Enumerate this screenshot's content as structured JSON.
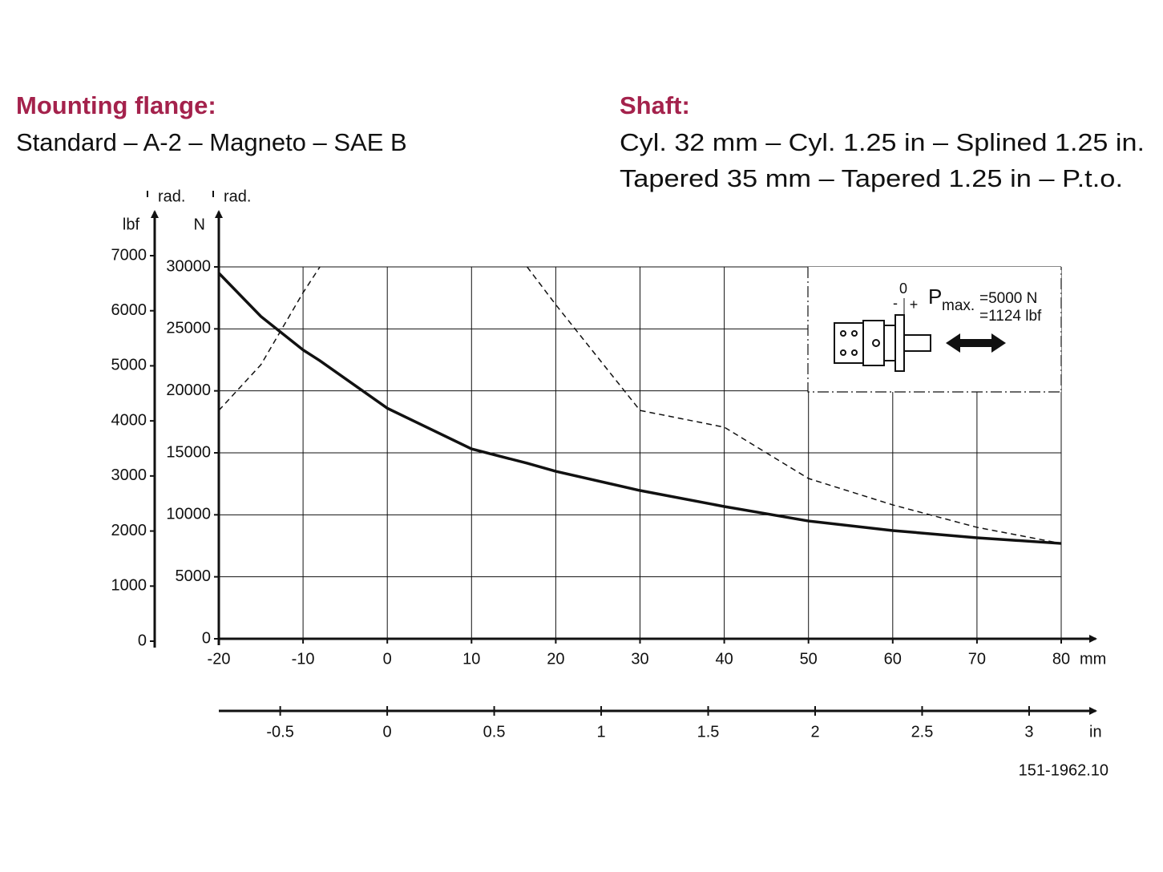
{
  "header": {
    "left_title": "Mounting flange:",
    "left_text": "Standard – A-2 – Magneto – SAE B",
    "right_title": "Shaft:",
    "right_lines": [
      "Cyl. 32 mm – Cyl. 1.25 in – Splined 1.25 in.",
      "Tapered 35 mm – Tapered 1.25 in – P.t.o."
    ]
  },
  "chart_data": {
    "type": "line",
    "x_label": "mm",
    "x2_label": "in",
    "y_label": "N",
    "y2_label": "lbf",
    "y_note": "rad.",
    "y2_note": "rad.",
    "x": [
      -20,
      -15,
      -10,
      -8,
      0,
      10,
      16.6,
      20,
      30,
      40,
      50,
      60,
      70,
      80
    ],
    "series": [
      {
        "color": "#111111",
        "line_style": "solid",
        "values": [
          29500,
          26000,
          23300,
          22430,
          18600,
          15320,
          14160,
          13510,
          11960,
          10670,
          9500,
          8730,
          8150,
          7690
        ]
      },
      {
        "color": "#111111",
        "line_style": "dashed",
        "values": [
          18420,
          22110,
          27920,
          30000,
          null,
          null,
          30000,
          26950,
          18420,
          17070,
          12930,
          10800,
          8990,
          7690
        ]
      }
    ],
    "xlim": [
      -20,
      80
    ],
    "xticks": [
      -20,
      -10,
      0,
      10,
      20,
      30,
      40,
      50,
      60,
      70,
      80
    ],
    "x2lim": [
      -0.787,
      3.15
    ],
    "x2ticks": [
      -0.5,
      0,
      0.5,
      1,
      1.5,
      2,
      2.5,
      3
    ],
    "ylim": [
      0,
      30000
    ],
    "yticks": [
      0,
      5000,
      10000,
      15000,
      20000,
      25000,
      30000
    ],
    "y2lim": [
      0,
      7000
    ],
    "y2ticks": [
      0,
      1000,
      2000,
      3000,
      4000,
      5000,
      6000,
      7000
    ],
    "grid": true
  },
  "inset": {
    "zero": "0",
    "minus": "-",
    "plus": "+",
    "p": "P",
    "p_sub": "max.",
    "force_n": "=5000 N",
    "force_lbf": "=1124 lbf"
  },
  "figure_id": "151-1962.10"
}
